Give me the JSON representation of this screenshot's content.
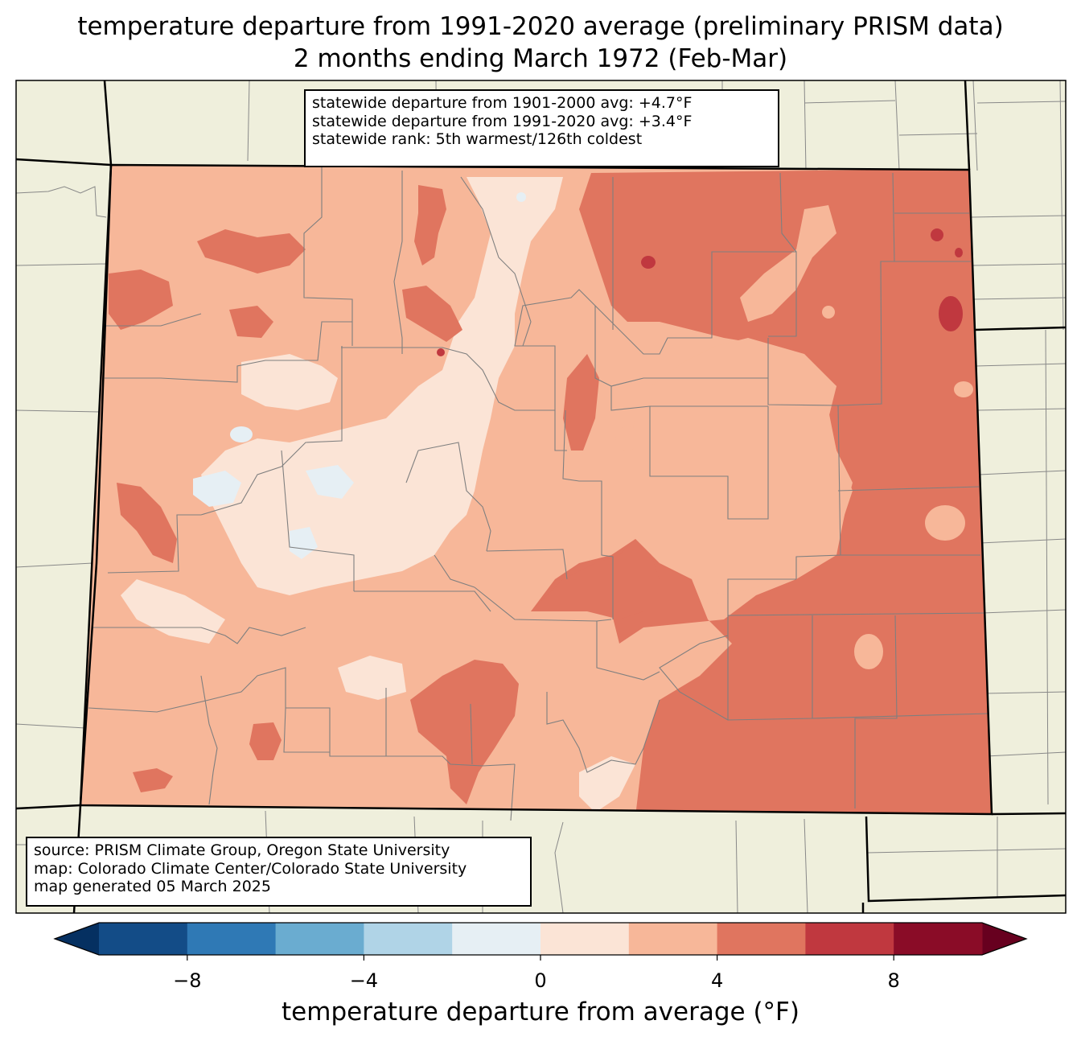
{
  "title_line1": "temperature departure from 1991-2020 average (preliminary PRISM data)",
  "title_line2": "2 months ending March 1972 (Feb-Mar)",
  "stats": {
    "line1": "statewide departure from 1901-2000 avg: +4.7°F",
    "line2": "statewide departure from 1991-2020 avg: +3.4°F",
    "line3": "statewide rank: 5th warmest/126th coldest"
  },
  "source": {
    "line1": "source: PRISM Climate Group, Oregon State University",
    "line2": "map: Colorado Climate Center/Colorado State University",
    "line3": "map generated 05 March 2025"
  },
  "colorbar": {
    "title": "temperature departure from average (°F)",
    "tick_labels": [
      "−8",
      "−4",
      "0",
      "4",
      "8"
    ],
    "tick_values": [
      -8,
      -4,
      0,
      4,
      8
    ],
    "bounds": [
      -10,
      -8,
      -6,
      -4,
      -2,
      0,
      2,
      4,
      6,
      8,
      10
    ],
    "under_color": "#053061",
    "over_color": "#67001f",
    "colors": [
      "#134c87",
      "#2f79b5",
      "#6aacd0",
      "#b0d4e7",
      "#e6eff4",
      "#fbe4d6",
      "#f7b799",
      "#e0755f",
      "#c0383f",
      "#8a0c27"
    ]
  },
  "background_color": "#efefdc",
  "map_colors": {
    "above_0_to_2": "#fbe4d6",
    "above_2_to_4": "#f7b799",
    "above_4_to_6": "#e0755f",
    "above_6_to_8": "#c0383f",
    "below_0_to_2": "#e6eff4"
  }
}
